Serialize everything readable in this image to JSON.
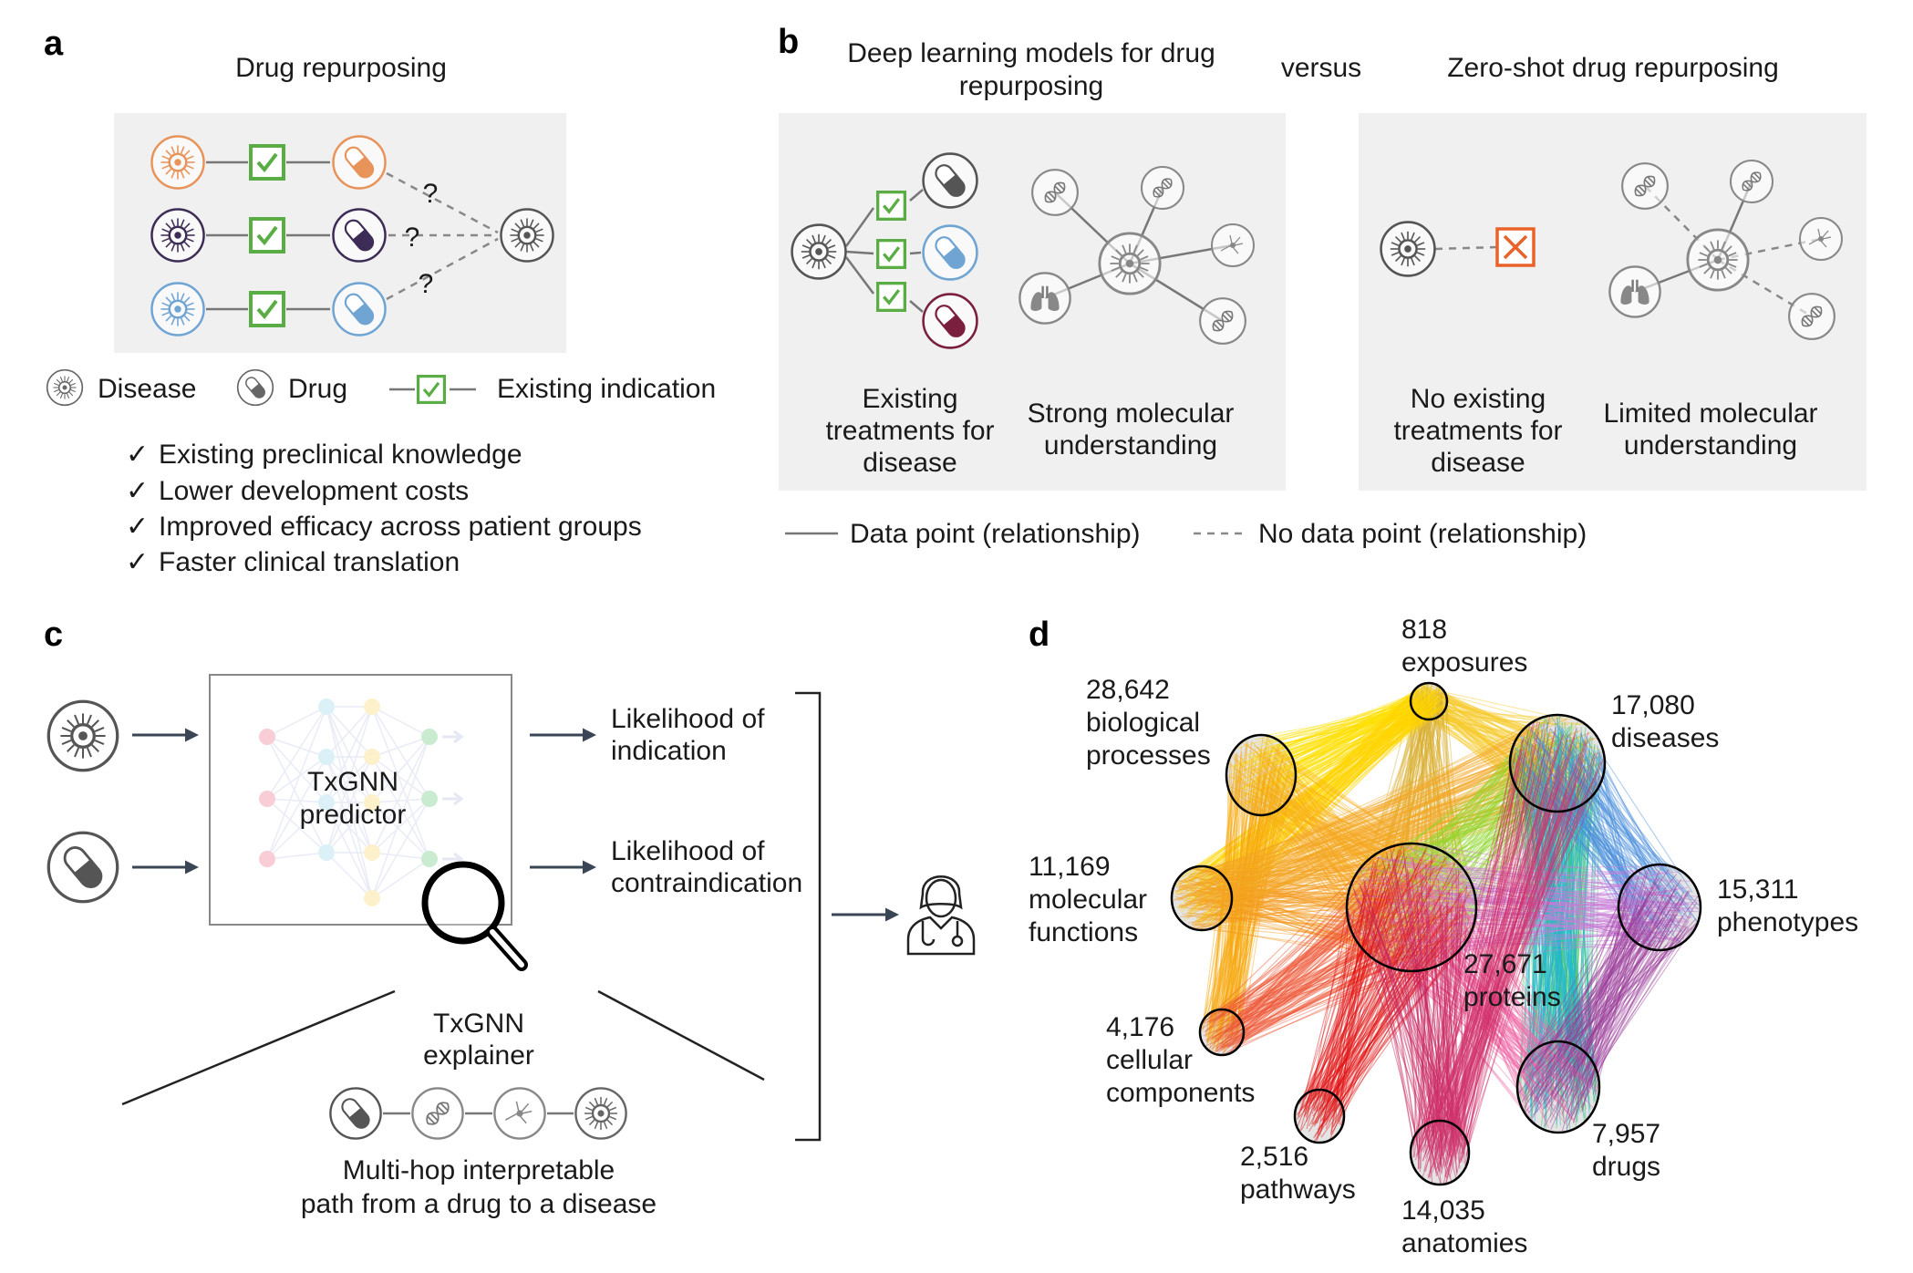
{
  "panel_a": {
    "label": "a",
    "title": "Drug repurposing",
    "question_mark": "?",
    "row_colors": [
      "#e8935a",
      "#3d2c55",
      "#6fa4d3"
    ],
    "target_color": "#555555",
    "legend": {
      "disease": "Disease",
      "drug": "Drug",
      "existing_indication": "Existing indication"
    },
    "benefits": [
      "Existing preclinical knowledge",
      "Lower development costs",
      "Improved efficacy across patient groups",
      "Faster clinical translation"
    ],
    "check_mark": "✓"
  },
  "panel_b": {
    "label": "b",
    "left_title": [
      "Deep learning models for drug",
      "repurposing"
    ],
    "versus": "versus",
    "right_title": "Zero-shot drug repurposing",
    "left_captions": {
      "treatments": [
        "Existing",
        "treatments for",
        "disease"
      ],
      "molecular": [
        "Strong molecular",
        "understanding"
      ]
    },
    "right_captions": {
      "treatments": [
        "No existing",
        "treatments for",
        "disease"
      ],
      "molecular": [
        "Limited molecular",
        "understanding"
      ]
    },
    "drug_colors": [
      "#555555",
      "#6fa4d3",
      "#7a1f3d"
    ],
    "cross_color": "#e8622a",
    "legend": {
      "solid": "Data point (relationship)",
      "dashed": "No data point (relationship)"
    }
  },
  "panel_c": {
    "label": "c",
    "predictor": [
      "TxGNN",
      "predictor"
    ],
    "outputs": {
      "indication": [
        "Likelihood of",
        "indication"
      ],
      "contraindication": [
        "Likelihood of",
        "contraindication"
      ]
    },
    "explainer": [
      "TxGNN",
      "explainer"
    ],
    "path_caption": [
      "Multi-hop interpretable",
      "path from a drug to a disease"
    ]
  },
  "panel_d": {
    "label": "d",
    "nodes": [
      {
        "id": "exposures",
        "count": "818",
        "label": [
          "exposures"
        ]
      },
      {
        "id": "bio",
        "count": "28,642",
        "label": [
          "biological",
          "processes"
        ]
      },
      {
        "id": "diseases",
        "count": "17,080",
        "label": [
          "diseases"
        ]
      },
      {
        "id": "molfunc",
        "count": "11,169",
        "label": [
          "molecular",
          "functions"
        ]
      },
      {
        "id": "proteins",
        "count": "27,671",
        "label": [
          "proteins"
        ]
      },
      {
        "id": "phenotypes",
        "count": "15,311",
        "label": [
          "phenotypes"
        ]
      },
      {
        "id": "cellular",
        "count": "4,176",
        "label": [
          "cellular",
          "components"
        ]
      },
      {
        "id": "pathways",
        "count": "2,516",
        "label": [
          "pathways"
        ]
      },
      {
        "id": "anatomies",
        "count": "14,035",
        "label": [
          "anatomies"
        ]
      },
      {
        "id": "drugs",
        "count": "7,957",
        "label": [
          "drugs"
        ]
      }
    ],
    "edges": [
      {
        "from": "exposures",
        "to": "bio",
        "color": "#ffe100"
      },
      {
        "from": "exposures",
        "to": "diseases",
        "color": "#f7c928"
      },
      {
        "from": "exposures",
        "to": "proteins",
        "color": "#d9b030"
      },
      {
        "from": "exposures",
        "to": "molfunc",
        "color": "#ffd500"
      },
      {
        "from": "bio",
        "to": "proteins",
        "color": "#f9b21c"
      },
      {
        "from": "bio",
        "to": "cellular",
        "color": "#f7a80f"
      },
      {
        "from": "molfunc",
        "to": "proteins",
        "color": "#f39a1c"
      },
      {
        "from": "molfunc",
        "to": "diseases",
        "color": "#f5a623"
      },
      {
        "from": "diseases",
        "to": "proteins",
        "color": "#8fd62b"
      },
      {
        "from": "diseases",
        "to": "drugs",
        "color": "#3dc45a"
      },
      {
        "from": "diseases",
        "to": "drugs",
        "color": "#1fb5d6"
      },
      {
        "from": "diseases",
        "to": "phenotypes",
        "color": "#4a8fdb"
      },
      {
        "from": "proteins",
        "to": "phenotypes",
        "color": "#c77dd8"
      },
      {
        "from": "proteins",
        "to": "drugs",
        "color": "#f06aa8"
      },
      {
        "from": "phenotypes",
        "to": "drugs",
        "color": "#9a3c9a"
      },
      {
        "from": "cellular",
        "to": "proteins",
        "color": "#ee5533"
      },
      {
        "from": "pathways",
        "to": "proteins",
        "color": "#e01010"
      },
      {
        "from": "anatomies",
        "to": "proteins",
        "color": "#c8245e"
      },
      {
        "from": "anatomies",
        "to": "diseases",
        "color": "#d0306a"
      }
    ]
  }
}
